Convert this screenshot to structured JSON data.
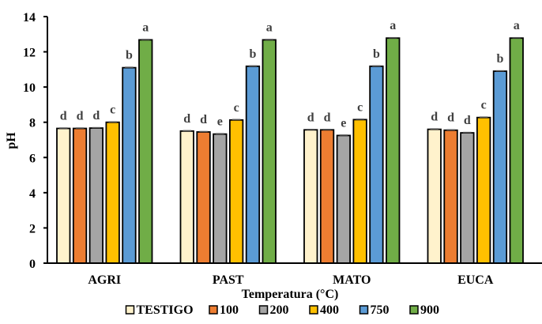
{
  "chart_data": {
    "type": "bar",
    "title": "",
    "xlabel": "Temperatura (°C)",
    "ylabel": "pH",
    "ylim": [
      0,
      14
    ],
    "yticks": [
      0,
      2,
      4,
      6,
      8,
      10,
      12,
      14
    ],
    "grid": false,
    "legend_position": "bottom",
    "categories": [
      "AGRI",
      "PAST",
      "MATO",
      "EUCA"
    ],
    "series": [
      {
        "name": "TESTIGO",
        "color": "#FFF2CC",
        "values": [
          7.65,
          7.5,
          7.57,
          7.6
        ],
        "letters": [
          "d",
          "d",
          "d",
          "d"
        ]
      },
      {
        "name": "100",
        "color": "#ED7D31",
        "values": [
          7.65,
          7.45,
          7.57,
          7.55
        ],
        "letters": [
          "d",
          "d",
          "d",
          "d"
        ]
      },
      {
        "name": "200",
        "color": "#A5A5A5",
        "values": [
          7.67,
          7.33,
          7.25,
          7.4
        ],
        "letters": [
          "d",
          "e",
          "e",
          "d"
        ]
      },
      {
        "name": "400",
        "color": "#FFC000",
        "values": [
          8.0,
          8.13,
          8.15,
          8.27
        ],
        "letters": [
          "c",
          "c",
          "c",
          "c"
        ]
      },
      {
        "name": "750",
        "color": "#5B9BD5",
        "values": [
          11.1,
          11.18,
          11.18,
          10.9
        ],
        "letters": [
          "b",
          "b",
          "b",
          "b"
        ]
      },
      {
        "name": "900",
        "color": "#70AD47",
        "values": [
          12.68,
          12.68,
          12.78,
          12.78
        ],
        "letters": [
          "a",
          "a",
          "a",
          "a"
        ]
      }
    ]
  }
}
